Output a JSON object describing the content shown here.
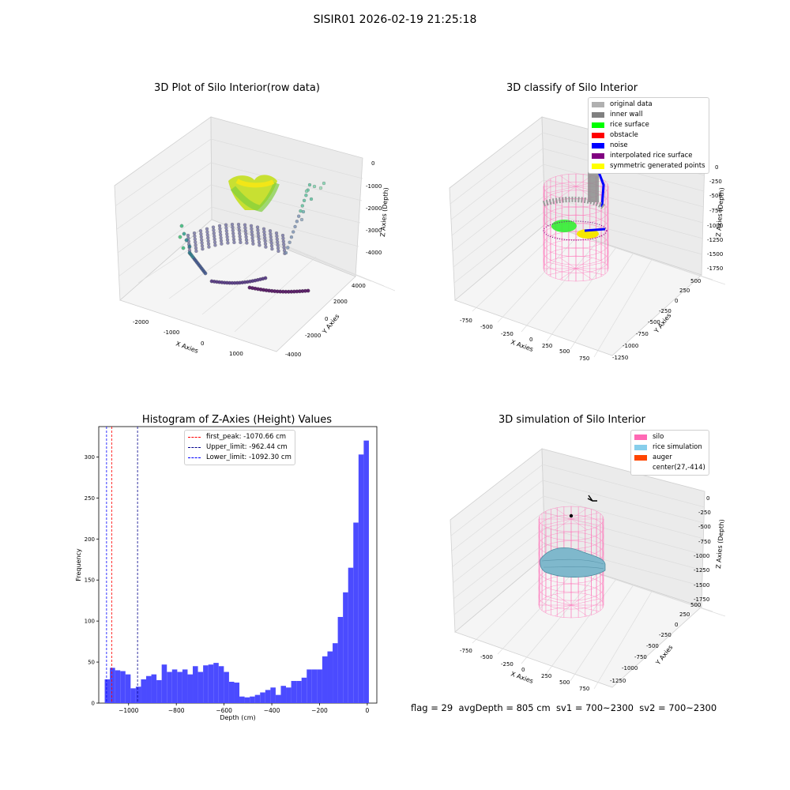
{
  "suptitle": "SISIR01 2026-02-19 21:25:18",
  "panels": {
    "raw": {
      "title": "3D Plot of Silo Interior(row data)",
      "xlabel": "X Axies",
      "ylabel": "Y Axies",
      "zlabel": "Z Axies (Depth)",
      "xticks": [
        "-2000",
        "-1000",
        "0",
        "1000"
      ],
      "yticks": [
        "-4000",
        "-2000",
        "0",
        "2000",
        "4000"
      ],
      "zticks": [
        "0",
        "-1000",
        "-2000",
        "-3000",
        "-4000"
      ]
    },
    "classify": {
      "title": "3D classify of Silo Interior",
      "xlabel": "X Axies",
      "ylabel": "Y Axies",
      "zlabel": "Z Axies (Depth)",
      "xticks": [
        "-750",
        "-500",
        "-250",
        "0",
        "250",
        "500",
        "750"
      ],
      "yticks": [
        "-1250",
        "-1000",
        "-750",
        "-500",
        "-250",
        "0",
        "250",
        "500"
      ],
      "zticks": [
        "0",
        "-250",
        "-500",
        "-750",
        "-1000",
        "-1250",
        "-1500",
        "-1750"
      ],
      "legend": [
        {
          "label": "original data",
          "color": "#b0b0b0"
        },
        {
          "label": "inner wall",
          "color": "#808080"
        },
        {
          "label": "rice surface",
          "color": "#00ff00"
        },
        {
          "label": "obstacle",
          "color": "#ff0000"
        },
        {
          "label": "noise",
          "color": "#0000ff"
        },
        {
          "label": "interpolated rice surface",
          "color": "#800080"
        },
        {
          "label": "symmetric generated points",
          "color": "#ffff00"
        }
      ]
    },
    "simulation": {
      "title": "3D simulation of Silo Interior",
      "xlabel": "X Axies",
      "ylabel": "Y Axies",
      "zlabel": "Z Axies (Depth)",
      "xticks": [
        "-750",
        "-500",
        "-250",
        "0",
        "250",
        "500",
        "750"
      ],
      "yticks": [
        "-1250",
        "-1000",
        "-750",
        "-500",
        "-250",
        "0",
        "250",
        "500"
      ],
      "zticks": [
        "0",
        "-250",
        "-500",
        "-750",
        "-1000",
        "-1250",
        "-1500",
        "-1750"
      ],
      "legend": [
        {
          "label": "silo",
          "color": "#ff69b4"
        },
        {
          "label": "rice simulation",
          "color": "#87ceeb"
        },
        {
          "label": "auger",
          "color": "#ff4500"
        },
        {
          "label": "center(27,-414)",
          "color": ""
        }
      ]
    }
  },
  "status_text": "flag = 29  avgDepth = 805 cm  sv1 = 700~2300  sv2 = 700~2300",
  "chart_data": {
    "type": "bar",
    "title": "Histogram of Z-Axies (Height) Values",
    "xlabel": "Depth (cm)",
    "ylabel": "Frequency",
    "xlim": [
      -1125,
      40
    ],
    "ylim": [
      0,
      337
    ],
    "xticks": [
      -1000,
      -800,
      -600,
      -400,
      -200,
      0
    ],
    "yticks": [
      0,
      50,
      100,
      150,
      200,
      250,
      300
    ],
    "bin_width": 21.7,
    "bins_start": [
      -1100.0,
      -1078.3,
      -1056.6,
      -1034.9,
      -1013.2,
      -991.5,
      -969.8,
      -948.1,
      -926.4,
      -904.7,
      -883.0,
      -861.3,
      -839.6,
      -817.9,
      -796.2,
      -774.5,
      -752.8,
      -731.1,
      -709.4,
      -687.7,
      -666.0,
      -644.3,
      -622.6,
      -600.9,
      -579.2,
      -557.5,
      -535.8,
      -514.1,
      -492.4,
      -470.7,
      -449.0,
      -427.3,
      -405.6,
      -383.9,
      -362.2,
      -340.5,
      -318.8,
      -297.1,
      -275.4,
      -253.7,
      -232.0,
      -210.3,
      -188.6,
      -166.9,
      -145.2,
      -123.5,
      -101.8,
      -80.1,
      -58.4,
      -36.7,
      -15.0
    ],
    "values": [
      29,
      43,
      40,
      39,
      35,
      18,
      20,
      29,
      33,
      35,
      28,
      47,
      38,
      41,
      38,
      41,
      35,
      45,
      38,
      46,
      47,
      49,
      45,
      38,
      26,
      25,
      8,
      7,
      8,
      10,
      13,
      16,
      19,
      10,
      21,
      19,
      27,
      27,
      31,
      41,
      41,
      41,
      57,
      63,
      73,
      105,
      135,
      165,
      220,
      303,
      320
    ],
    "reference_lines": [
      {
        "label": "first_peak: -1070.66 cm",
        "x": -1070.66,
        "color": "#ff0000"
      },
      {
        "label": "Upper_limit: -962.44 cm",
        "x": -962.44,
        "color": "#00008b"
      },
      {
        "label": "Lower_limit: -1092.30 cm",
        "x": -1092.3,
        "color": "#0000ff"
      }
    ],
    "bar_color": "#4b4bff",
    "grid": false,
    "legend_position": "top-center"
  }
}
